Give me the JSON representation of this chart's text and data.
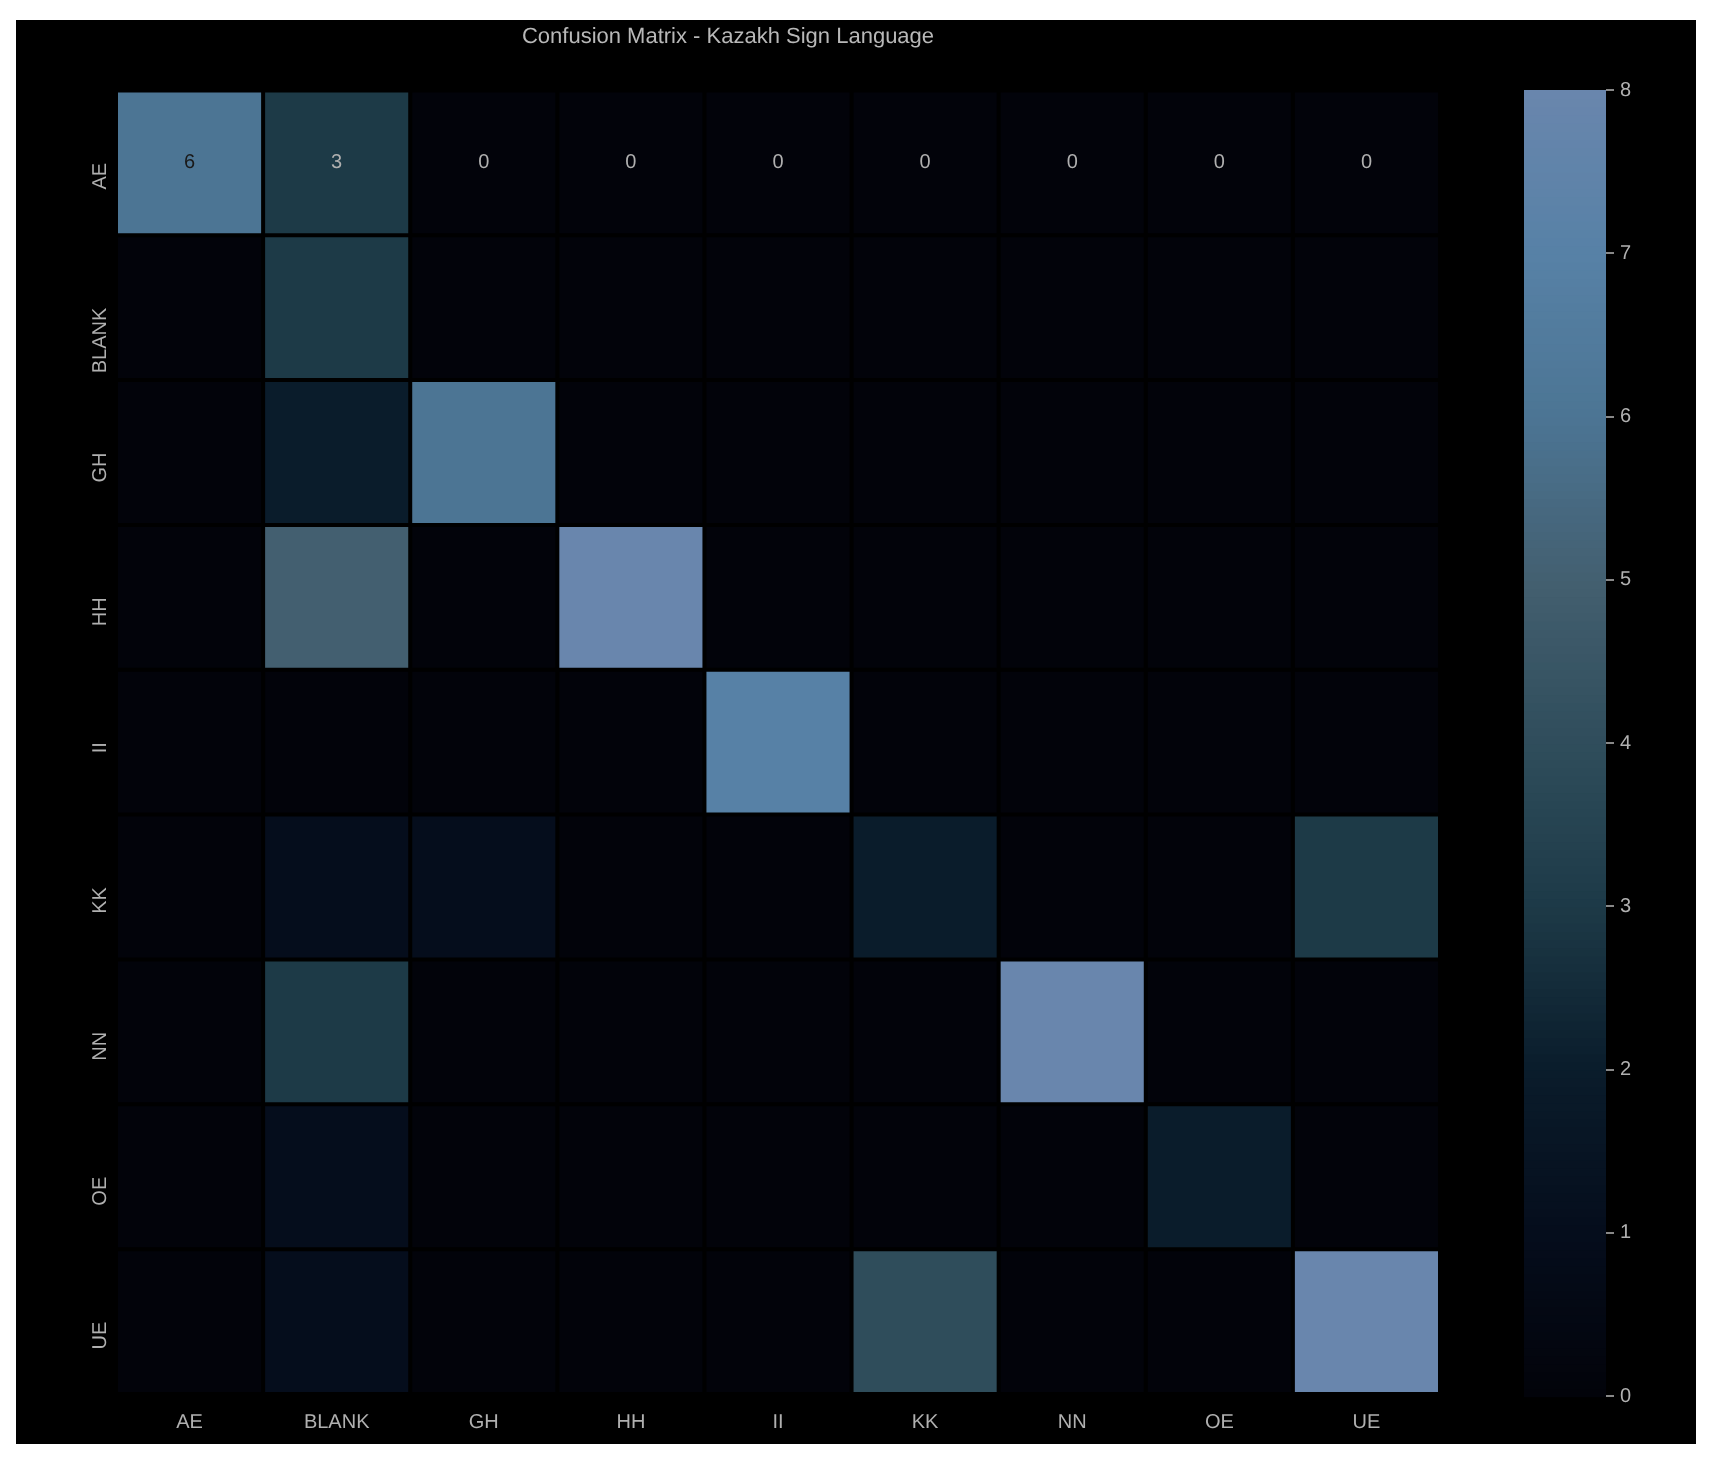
{
  "chart_data": {
    "type": "heatmap",
    "title": "Confusion Matrix - Kazakh Sign Language",
    "categories": [
      "AE",
      "BLANK",
      "GH",
      "HH",
      "II",
      "KK",
      "NN",
      "OE",
      "UE"
    ],
    "y_categories": [
      "AE",
      "BLANK",
      "GH",
      "HH",
      "II",
      "KK",
      "NN",
      "OE",
      "UE"
    ],
    "cells": [
      [
        6,
        3,
        0,
        0,
        0,
        0,
        0,
        0,
        0
      ],
      [
        0,
        3,
        0,
        0,
        0,
        0,
        0,
        0,
        0
      ],
      [
        0,
        2,
        6,
        0,
        0,
        0,
        0,
        0,
        0
      ],
      [
        0,
        5,
        0,
        8,
        0,
        0,
        0,
        0,
        0
      ],
      [
        0,
        0,
        0,
        0,
        7,
        0,
        0,
        0,
        0
      ],
      [
        0,
        1,
        1,
        0,
        0,
        2,
        0,
        0,
        3
      ],
      [
        0,
        3,
        0,
        0,
        0,
        0,
        8,
        0,
        0
      ],
      [
        0,
        1,
        0,
        0,
        0,
        0,
        0,
        2,
        0
      ],
      [
        0,
        1,
        0,
        0,
        0,
        4,
        0,
        0,
        8
      ]
    ],
    "cell_labels": [
      [
        "6",
        "3",
        "0",
        "0",
        "0",
        "0",
        "0",
        "0",
        "0"
      ],
      [
        null,
        null,
        null,
        null,
        null,
        null,
        null,
        null,
        null
      ],
      [
        null,
        null,
        null,
        null,
        null,
        null,
        null,
        null,
        null
      ],
      [
        null,
        null,
        null,
        null,
        null,
        null,
        null,
        null,
        null
      ],
      [
        null,
        null,
        null,
        null,
        null,
        null,
        null,
        null,
        null
      ],
      [
        null,
        null,
        null,
        null,
        null,
        null,
        null,
        null,
        null
      ],
      [
        null,
        null,
        null,
        null,
        null,
        null,
        null,
        null,
        null
      ],
      [
        null,
        null,
        null,
        null,
        null,
        null,
        null,
        null,
        null
      ],
      [
        null,
        null,
        null,
        null,
        null,
        null,
        null,
        null,
        null
      ]
    ],
    "clim": [
      0,
      8
    ],
    "cticks": [
      0,
      1,
      2,
      3,
      4,
      5,
      6,
      7,
      8
    ]
  }
}
